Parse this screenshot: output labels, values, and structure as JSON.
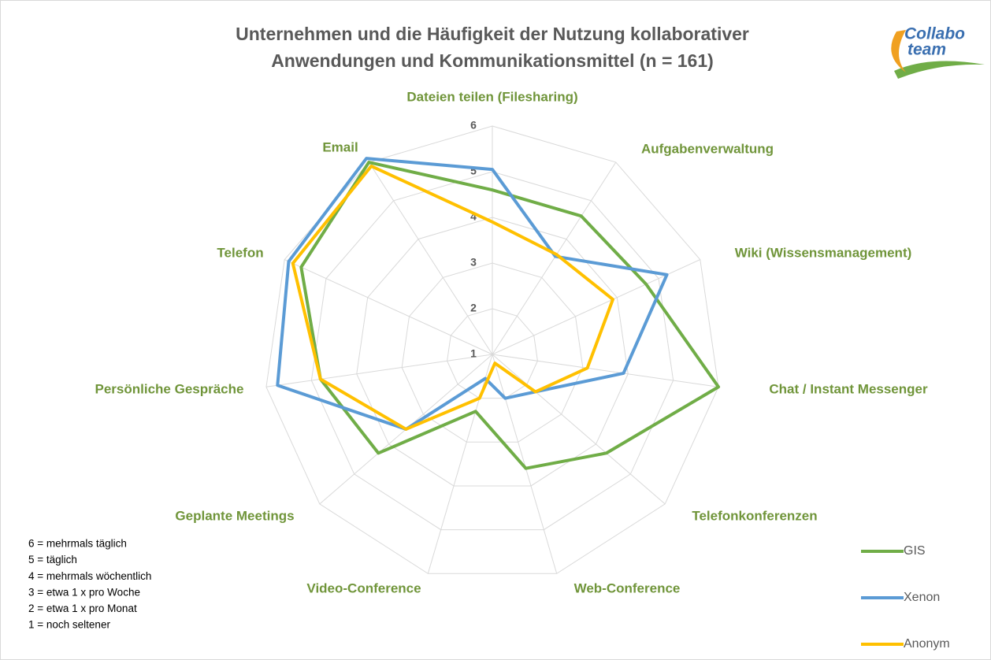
{
  "chart_data": {
    "type": "radar",
    "title": [
      "Unternehmen und die Häufigkeit der Nutzung kollaborativer",
      "Anwendungen und Kommunikationsmittel (n = 161)"
    ],
    "logo": [
      "Collabo",
      "team"
    ],
    "categories": [
      "Dateien teilen (Filesharing)",
      "Aufgabenverwaltung",
      "Wiki (Wissensmanagement)",
      "Chat / Instant Messenger",
      "Telefonkonferenzen",
      "Web-Conference",
      "Video-Conference",
      "Geplante Meetings",
      "Persönliche Gespräche",
      "Telefon",
      "Email"
    ],
    "ylim": [
      1,
      6
    ],
    "yticks": [
      1,
      2,
      3,
      4,
      5,
      6
    ],
    "grid": true,
    "legend_position": "lower right",
    "scale_notes": [
      "6 = mehrmals täglich",
      "5 = täglich",
      "4 = mehrmals wöchentlich",
      "3 = etwa 1 x pro Woche",
      "2 = etwa 1 x pro Monat",
      "1 = noch seltener"
    ],
    "series": [
      {
        "name": "GIS",
        "color": "#70ad47",
        "values": [
          4.6,
          4.6,
          4.7,
          6,
          4.3,
          3.6,
          2.3,
          4.3,
          4.8,
          5.6,
          6
        ]
      },
      {
        "name": "Xenon",
        "color": "#5b9bd5",
        "values": [
          5.05,
          3.55,
          5.2,
          3.9,
          2.25,
          2.0,
          1.55,
          3.5,
          5.75,
          5.9,
          6.1
        ]
      },
      {
        "name": "Anonym",
        "color": "#ffc000",
        "values": [
          3.9,
          3.6,
          3.9,
          3.1,
          2.25,
          1.2,
          2.0,
          3.5,
          4.8,
          5.8,
          5.9
        ]
      }
    ]
  }
}
